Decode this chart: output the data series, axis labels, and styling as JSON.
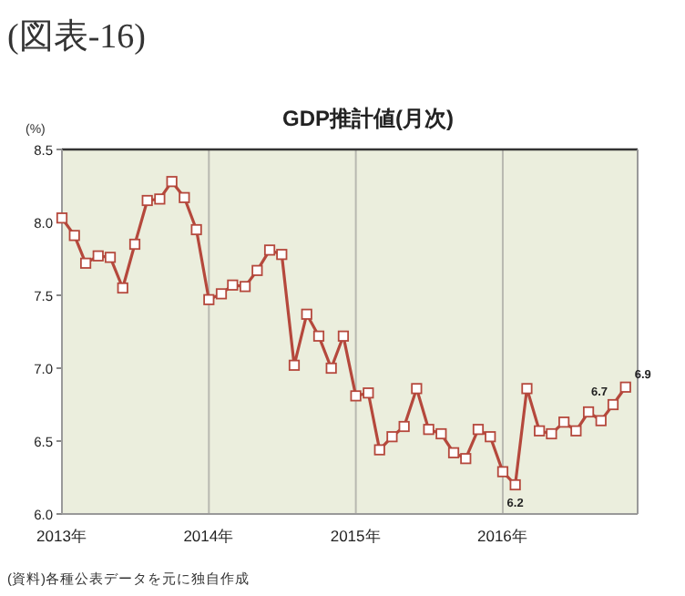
{
  "chart_data": {
    "type": "line",
    "title": "(図表-16)",
    "subtitle": "GDP推計値(月次)",
    "ylabel": "(%)",
    "x": [
      "2013-01",
      "2013-02",
      "2013-03",
      "2013-04",
      "2013-05",
      "2013-06",
      "2013-07",
      "2013-08",
      "2013-09",
      "2013-10",
      "2013-11",
      "2013-12",
      "2014-01",
      "2014-02",
      "2014-03",
      "2014-04",
      "2014-05",
      "2014-06",
      "2014-07",
      "2014-08",
      "2014-09",
      "2014-10",
      "2014-11",
      "2014-12",
      "2015-01",
      "2015-02",
      "2015-03",
      "2015-04",
      "2015-05",
      "2015-06",
      "2015-07",
      "2015-08",
      "2015-09",
      "2015-10",
      "2015-11",
      "2015-12",
      "2016-01",
      "2016-02",
      "2016-03",
      "2016-04",
      "2016-05",
      "2016-06",
      "2016-07",
      "2016-08",
      "2016-09",
      "2016-10",
      "2016-11"
    ],
    "series": [
      {
        "color": "#b5483c",
        "marker": "square",
        "values": [
          8.03,
          7.91,
          7.72,
          7.77,
          7.76,
          7.55,
          7.85,
          8.15,
          8.16,
          8.28,
          8.17,
          7.95,
          7.47,
          7.51,
          7.57,
          7.56,
          7.67,
          7.81,
          7.78,
          7.02,
          7.37,
          7.22,
          7.0,
          7.22,
          6.81,
          6.83,
          6.44,
          6.53,
          6.6,
          6.86,
          6.58,
          6.55,
          6.42,
          6.38,
          6.58,
          6.53,
          6.29,
          6.2,
          6.86,
          6.57,
          6.55,
          6.63,
          6.57,
          6.7,
          6.64,
          6.75,
          6.87
        ],
        "value_labels": [
          null,
          null,
          null,
          null,
          null,
          null,
          null,
          null,
          null,
          null,
          null,
          null,
          null,
          null,
          null,
          null,
          null,
          null,
          null,
          null,
          null,
          null,
          null,
          null,
          null,
          null,
          null,
          null,
          null,
          null,
          null,
          null,
          null,
          null,
          null,
          null,
          null,
          "6.2",
          null,
          null,
          null,
          null,
          null,
          null,
          null,
          "6.7",
          "6.9"
        ]
      }
    ],
    "xlim": [
      "2013-01",
      "2016-12"
    ],
    "xticks": [
      {
        "value": "2013-01",
        "label": "2013年"
      },
      {
        "value": "2014-01",
        "label": "2014年"
      },
      {
        "value": "2015-01",
        "label": "2015年"
      },
      {
        "value": "2016-01",
        "label": "2016年"
      }
    ],
    "ylim": [
      6,
      8.5
    ],
    "yticks": [
      {
        "value": 6,
        "label": "6.0"
      },
      {
        "value": 6.5,
        "label": "6.5"
      },
      {
        "value": 7,
        "label": "7.0"
      },
      {
        "value": 7.5,
        "label": "7.5"
      },
      {
        "value": 8,
        "label": "8.0"
      },
      {
        "value": 8.5,
        "label": "8.5"
      }
    ],
    "grid": "x",
    "annotations": [
      "(資料)各種公表データを元に独自作成"
    ]
  }
}
